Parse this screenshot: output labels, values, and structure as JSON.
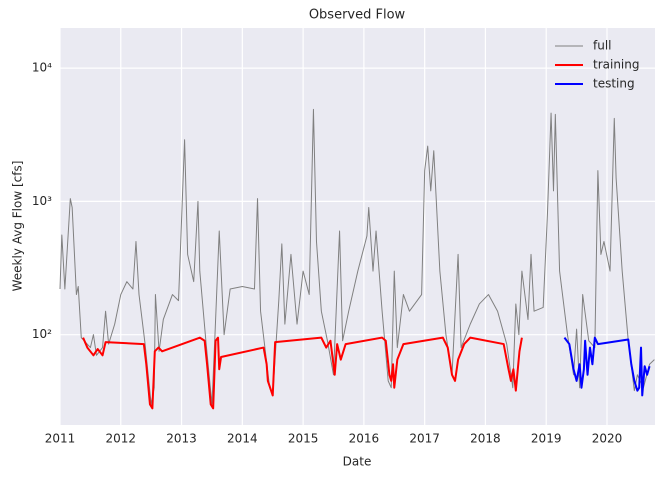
{
  "chart_data": {
    "type": "line",
    "title": "Observed Flow",
    "x_label": "Date",
    "y_label": "Weekly Avg Flow [cfs]",
    "log_y": true,
    "grid": true,
    "legend": "upper right",
    "xlim": [
      2011,
      2020.79
    ],
    "xticks": [
      2011,
      2012,
      2013,
      2014,
      2015,
      2016,
      2017,
      2018,
      2019,
      2020
    ],
    "ylim": [
      21,
      20000
    ],
    "yticks": [
      {
        "value": 100,
        "label": "10²"
      },
      {
        "value": 1000,
        "label": "10³"
      },
      {
        "value": 10000,
        "label": "10⁴"
      }
    ],
    "series": [
      {
        "name": "full",
        "color": "#808080",
        "width": 1,
        "x": [
          2011.0,
          2011.03,
          2011.08,
          2011.17,
          2011.2,
          2011.27,
          2011.3,
          2011.35,
          2011.5,
          2011.55,
          2011.6,
          2011.7,
          2011.75,
          2011.8,
          2011.9,
          2012.0,
          2012.1,
          2012.2,
          2012.25,
          2012.3,
          2012.4,
          2012.5,
          2012.55,
          2012.57,
          2012.63,
          2012.7,
          2012.85,
          2012.95,
          2013.05,
          2013.1,
          2013.2,
          2013.27,
          2013.3,
          2013.4,
          2013.5,
          2013.55,
          2013.62,
          2013.7,
          2013.8,
          2014.0,
          2014.2,
          2014.25,
          2014.3,
          2014.45,
          2014.5,
          2014.6,
          2014.65,
          2014.7,
          2014.8,
          2014.9,
          2015.0,
          2015.1,
          2015.17,
          2015.22,
          2015.3,
          2015.4,
          2015.5,
          2015.6,
          2015.65,
          2015.75,
          2015.9,
          2016.05,
          2016.08,
          2016.15,
          2016.2,
          2016.3,
          2016.4,
          2016.45,
          2016.5,
          2016.55,
          2016.65,
          2016.75,
          2016.95,
          2017.0,
          2017.05,
          2017.1,
          2017.15,
          2017.25,
          2017.35,
          2017.45,
          2017.55,
          2017.6,
          2017.75,
          2017.9,
          2018.05,
          2018.2,
          2018.35,
          2018.45,
          2018.5,
          2018.55,
          2018.6,
          2018.7,
          2018.75,
          2018.8,
          2018.95,
          2019.02,
          2019.08,
          2019.12,
          2019.15,
          2019.22,
          2019.35,
          2019.45,
          2019.5,
          2019.55,
          2019.6,
          2019.7,
          2019.8,
          2019.85,
          2019.9,
          2019.95,
          2020.05,
          2020.12,
          2020.15,
          2020.25,
          2020.35,
          2020.45,
          2020.5,
          2020.6,
          2020.7,
          2020.78
        ],
        "values": [
          220,
          560,
          220,
          1050,
          900,
          200,
          230,
          95,
          80,
          100,
          70,
          80,
          150,
          85,
          120,
          200,
          250,
          220,
          500,
          200,
          85,
          30,
          40,
          200,
          75,
          130,
          200,
          180,
          2900,
          400,
          250,
          1000,
          300,
          90,
          30,
          100,
          600,
          100,
          220,
          230,
          220,
          1050,
          150,
          40,
          35,
          180,
          480,
          120,
          400,
          120,
          300,
          200,
          4900,
          500,
          150,
          90,
          50,
          600,
          90,
          150,
          300,
          550,
          900,
          300,
          600,
          150,
          45,
          40,
          300,
          80,
          200,
          150,
          200,
          1700,
          2600,
          1200,
          2400,
          300,
          100,
          50,
          400,
          80,
          120,
          170,
          200,
          150,
          85,
          40,
          170,
          100,
          300,
          130,
          400,
          150,
          160,
          800,
          4600,
          1200,
          4500,
          300,
          100,
          50,
          110,
          40,
          200,
          90,
          80,
          1700,
          400,
          500,
          300,
          4200,
          1500,
          300,
          90,
          38,
          50,
          40,
          60,
          65
        ]
      },
      {
        "name": "training",
        "color": "#ff0000",
        "width": 2,
        "x": [
          2011.38,
          2011.45,
          2011.55,
          2011.62,
          2011.7,
          2011.75,
          2012.38,
          2012.42,
          2012.48,
          2012.52,
          2012.56,
          2012.62,
          2012.68,
          2013.3,
          2013.38,
          2013.42,
          2013.48,
          2013.52,
          2013.56,
          2013.6,
          2013.62,
          2013.65,
          2014.35,
          2014.4,
          2014.42,
          2014.5,
          2014.54,
          2015.3,
          2015.38,
          2015.45,
          2015.52,
          2015.56,
          2015.62,
          2015.7,
          2016.3,
          2016.36,
          2016.42,
          2016.45,
          2016.48,
          2016.5,
          2016.55,
          2016.65,
          2017.3,
          2017.38,
          2017.45,
          2017.5,
          2017.55,
          2017.65,
          2017.75,
          2018.3,
          2018.38,
          2018.42,
          2018.46,
          2018.5,
          2018.56,
          2018.6
        ],
        "values": [
          95,
          80,
          70,
          78,
          70,
          88,
          85,
          60,
          30,
          28,
          75,
          80,
          75,
          95,
          90,
          60,
          30,
          28,
          90,
          95,
          55,
          68,
          80,
          60,
          45,
          35,
          88,
          95,
          80,
          90,
          50,
          85,
          65,
          85,
          95,
          90,
          50,
          45,
          60,
          40,
          65,
          85,
          95,
          80,
          50,
          45,
          65,
          85,
          95,
          85,
          55,
          45,
          55,
          38,
          75,
          95
        ]
      },
      {
        "name": "testing",
        "color": "#0000ff",
        "width": 2,
        "x": [
          2019.3,
          2019.38,
          2019.45,
          2019.5,
          2019.55,
          2019.58,
          2019.62,
          2019.64,
          2019.68,
          2019.72,
          2019.76,
          2019.8,
          2019.85,
          2020.35,
          2020.4,
          2020.45,
          2020.5,
          2020.53,
          2020.56,
          2020.58,
          2020.62,
          2020.66,
          2020.7
        ],
        "values": [
          95,
          85,
          55,
          45,
          60,
          40,
          55,
          90,
          50,
          80,
          60,
          95,
          85,
          92,
          60,
          45,
          38,
          40,
          80,
          35,
          58,
          50,
          58
        ]
      }
    ]
  }
}
